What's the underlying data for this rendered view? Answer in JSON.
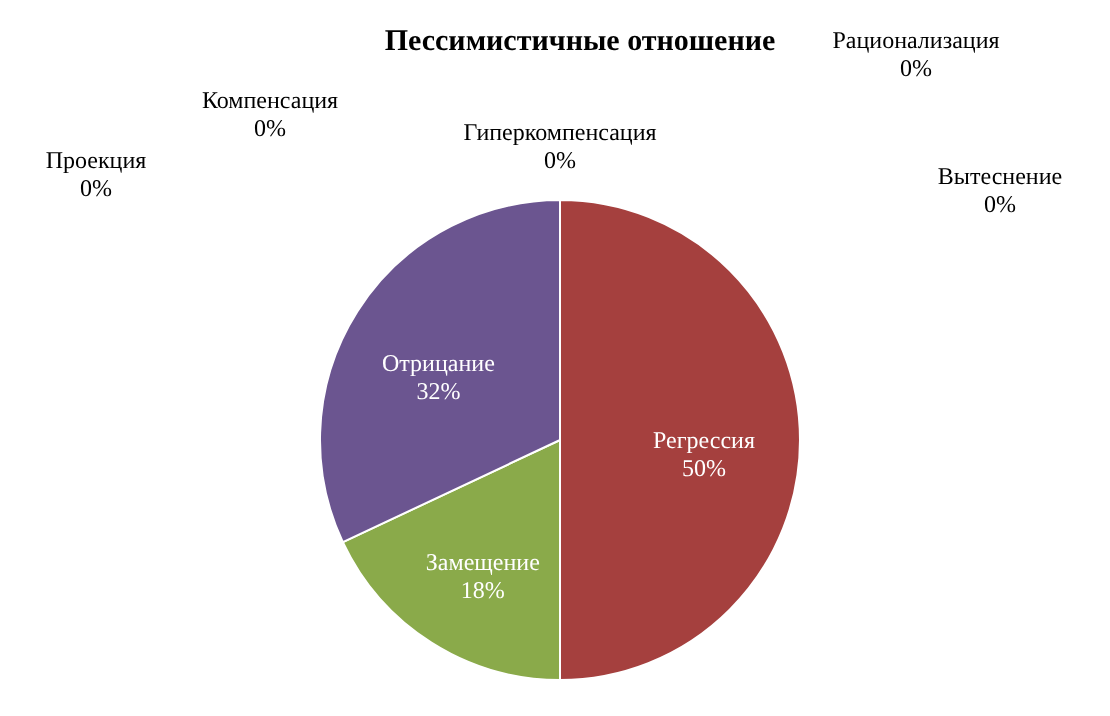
{
  "chart_data": {
    "type": "pie",
    "title": "Пессимистичные отношение",
    "categories": [
      "Вытеснение",
      "Регрессия",
      "Замещение",
      "Отрицание",
      "Проекция",
      "Компенсация",
      "Гиперкомпенсация",
      "Рационализация"
    ],
    "values": [
      0,
      50,
      18,
      32,
      0,
      0,
      0,
      0
    ],
    "value_labels": [
      "0%",
      "50%",
      "18%",
      "32%",
      "0%",
      "0%",
      "0%",
      "0%"
    ],
    "colors": [
      "#4f81bd",
      "#a5403e",
      "#8aaa4a",
      "#6b5590",
      "#4bacc6",
      "#f79646",
      "#2c4d75",
      "#772c2a"
    ]
  }
}
